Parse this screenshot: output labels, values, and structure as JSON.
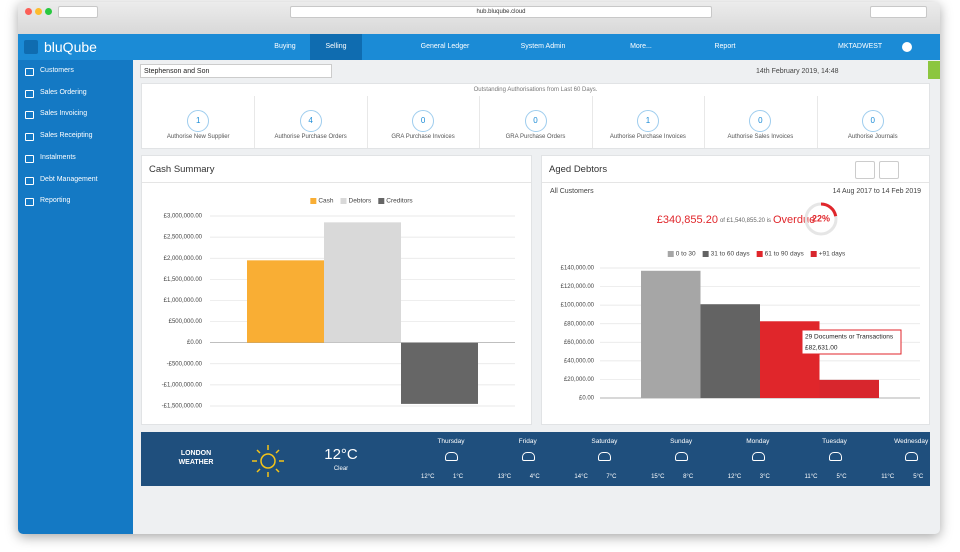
{
  "browser": {
    "url": "hub.bluqube.cloud"
  },
  "header": {
    "app_name": "bluQube",
    "nav": [
      "Buying",
      "Selling",
      "General Ledger",
      "System Admin",
      "More...",
      "Report"
    ],
    "user": "MKTADWEST"
  },
  "sidebar": {
    "items": [
      "Customers",
      "Sales Ordering",
      "Sales Invoicing",
      "Sales Receipting",
      "Instalments",
      "Debt Management",
      "Reporting"
    ]
  },
  "toolbar": {
    "company": "Stephenson and Son",
    "date": "14th February 2019, 14:48"
  },
  "authorisations": {
    "title": "Outstanding Authorisations from Last 60 Days.",
    "tiles": [
      {
        "count": 1,
        "label": "Authorise New Supplier"
      },
      {
        "count": 4,
        "label": "Authorise Purchase Orders"
      },
      {
        "count": 0,
        "label": "GRA Purchase Invoices"
      },
      {
        "count": 0,
        "label": "GRA Purchase Orders"
      },
      {
        "count": 1,
        "label": "Authorise Purchase Invoices"
      },
      {
        "count": 0,
        "label": "Authorise Sales Invoices"
      },
      {
        "count": 0,
        "label": "Authorise Journals"
      }
    ]
  },
  "cash_summary": {
    "title": "Cash Summary",
    "chart_data": {
      "type": "bar",
      "series": [
        {
          "name": "Cash",
          "color": "#f9ae34",
          "values": [
            1950000
          ]
        },
        {
          "name": "Debtors",
          "color": "#d9d9d9",
          "values": [
            2850000
          ]
        },
        {
          "name": "Creditors",
          "color": "#666666",
          "values": [
            -1450000
          ]
        }
      ],
      "ylim": [
        -1500000,
        3000000
      ],
      "yticks": [
        {
          "value": -1500000,
          "label": "-£1,500,000.00"
        },
        {
          "value": -1000000,
          "label": "-£1,000,000.00"
        },
        {
          "value": -500000,
          "label": "-£500,000.00"
        },
        {
          "value": 0,
          "label": "£0.00"
        },
        {
          "value": 500000,
          "label": "£500,000.00"
        },
        {
          "value": 1000000,
          "label": "£1,000,000.00"
        },
        {
          "value": 1500000,
          "label": "£1,500,000.00"
        },
        {
          "value": 2000000,
          "label": "£2,000,000.00"
        },
        {
          "value": 2500000,
          "label": "£2,500,000.00"
        },
        {
          "value": 3000000,
          "label": "£3,000,000.00"
        }
      ],
      "grid": true
    }
  },
  "aged_debtors": {
    "title": "Aged Debtors",
    "scope": "All Customers",
    "period": "14 Aug 2017 to 14 Feb 2019",
    "overdue_amount": "£340,855.20",
    "overdue_text": "of £1,540,855.20 is",
    "overdue_label": "Overdue",
    "gauge": {
      "value": 22,
      "label": "22%"
    },
    "chart_data": {
      "type": "bar",
      "series": [
        {
          "name": "0 to 30",
          "color": "#a6a6a6",
          "values": [
            137000
          ]
        },
        {
          "name": "31 to 60 days",
          "color": "#636363",
          "values": [
            101000
          ]
        },
        {
          "name": "61 to 90 days",
          "color": "#e0262b",
          "values": [
            82631
          ]
        },
        {
          "name": "+91 days",
          "color": "#d8262d",
          "values": [
            19500
          ]
        }
      ],
      "ylim": [
        0,
        140000
      ],
      "yticks": [
        {
          "value": 0,
          "label": "£0.00"
        },
        {
          "value": 20000,
          "label": "£20,000.00"
        },
        {
          "value": 40000,
          "label": "£40,000.00"
        },
        {
          "value": 60000,
          "label": "£60,000.00"
        },
        {
          "value": 80000,
          "label": "£80,000.00"
        },
        {
          "value": 100000,
          "label": "£100,000.00"
        },
        {
          "value": 120000,
          "label": "£120,000.00"
        },
        {
          "value": 140000,
          "label": "£140,000.00"
        }
      ],
      "grid": true,
      "tooltip": {
        "title": "29 Documents or Transactions",
        "value": "£82,631.00"
      }
    }
  },
  "weather": {
    "location": "LONDON",
    "label": "WEATHER",
    "temperature": "12°C",
    "condition": "Clear",
    "forecast": [
      {
        "day": "Thursday",
        "high": "12°C",
        "low": "1°C"
      },
      {
        "day": "Friday",
        "high": "13°C",
        "low": "4°C"
      },
      {
        "day": "Saturday",
        "high": "14°C",
        "low": "7°C"
      },
      {
        "day": "Sunday",
        "high": "15°C",
        "low": "8°C"
      },
      {
        "day": "Monday",
        "high": "12°C",
        "low": "3°C"
      },
      {
        "day": "Tuesday",
        "high": "11°C",
        "low": "5°C"
      },
      {
        "day": "Wednesday",
        "high": "11°C",
        "low": "5°C"
      }
    ]
  }
}
